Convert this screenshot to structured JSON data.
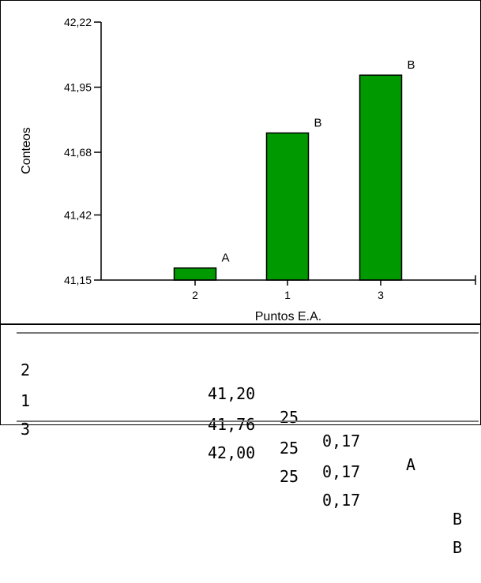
{
  "chart_data": {
    "type": "bar",
    "categories": [
      "2",
      "1",
      "3"
    ],
    "values": [
      41.2,
      41.76,
      42.0
    ],
    "bar_labels": [
      "A",
      "B",
      "B"
    ],
    "ylabel": "Conteos",
    "xlabel": "Puntos E.A.",
    "ylim": [
      41.15,
      42.22
    ],
    "yticks": [
      "41,15",
      "41,42",
      "41,68",
      "41,95",
      "42,22"
    ],
    "ytick_values": [
      41.15,
      41.42,
      41.68,
      41.95,
      42.22
    ],
    "bar_color": "#009900",
    "grid": false
  },
  "table": {
    "rows": [
      {
        "label": "2",
        "mean": "41,20",
        "n": "25",
        "se": "0,17",
        "group_a": "A",
        "group_b": ""
      },
      {
        "label": "1",
        "mean": "41,76",
        "n": "25",
        "se": "0,17",
        "group_a": "",
        "group_b": "B"
      },
      {
        "label": "3",
        "mean": "42,00",
        "n": "25",
        "se": "0,17",
        "group_a": "",
        "group_b": "B"
      }
    ]
  }
}
